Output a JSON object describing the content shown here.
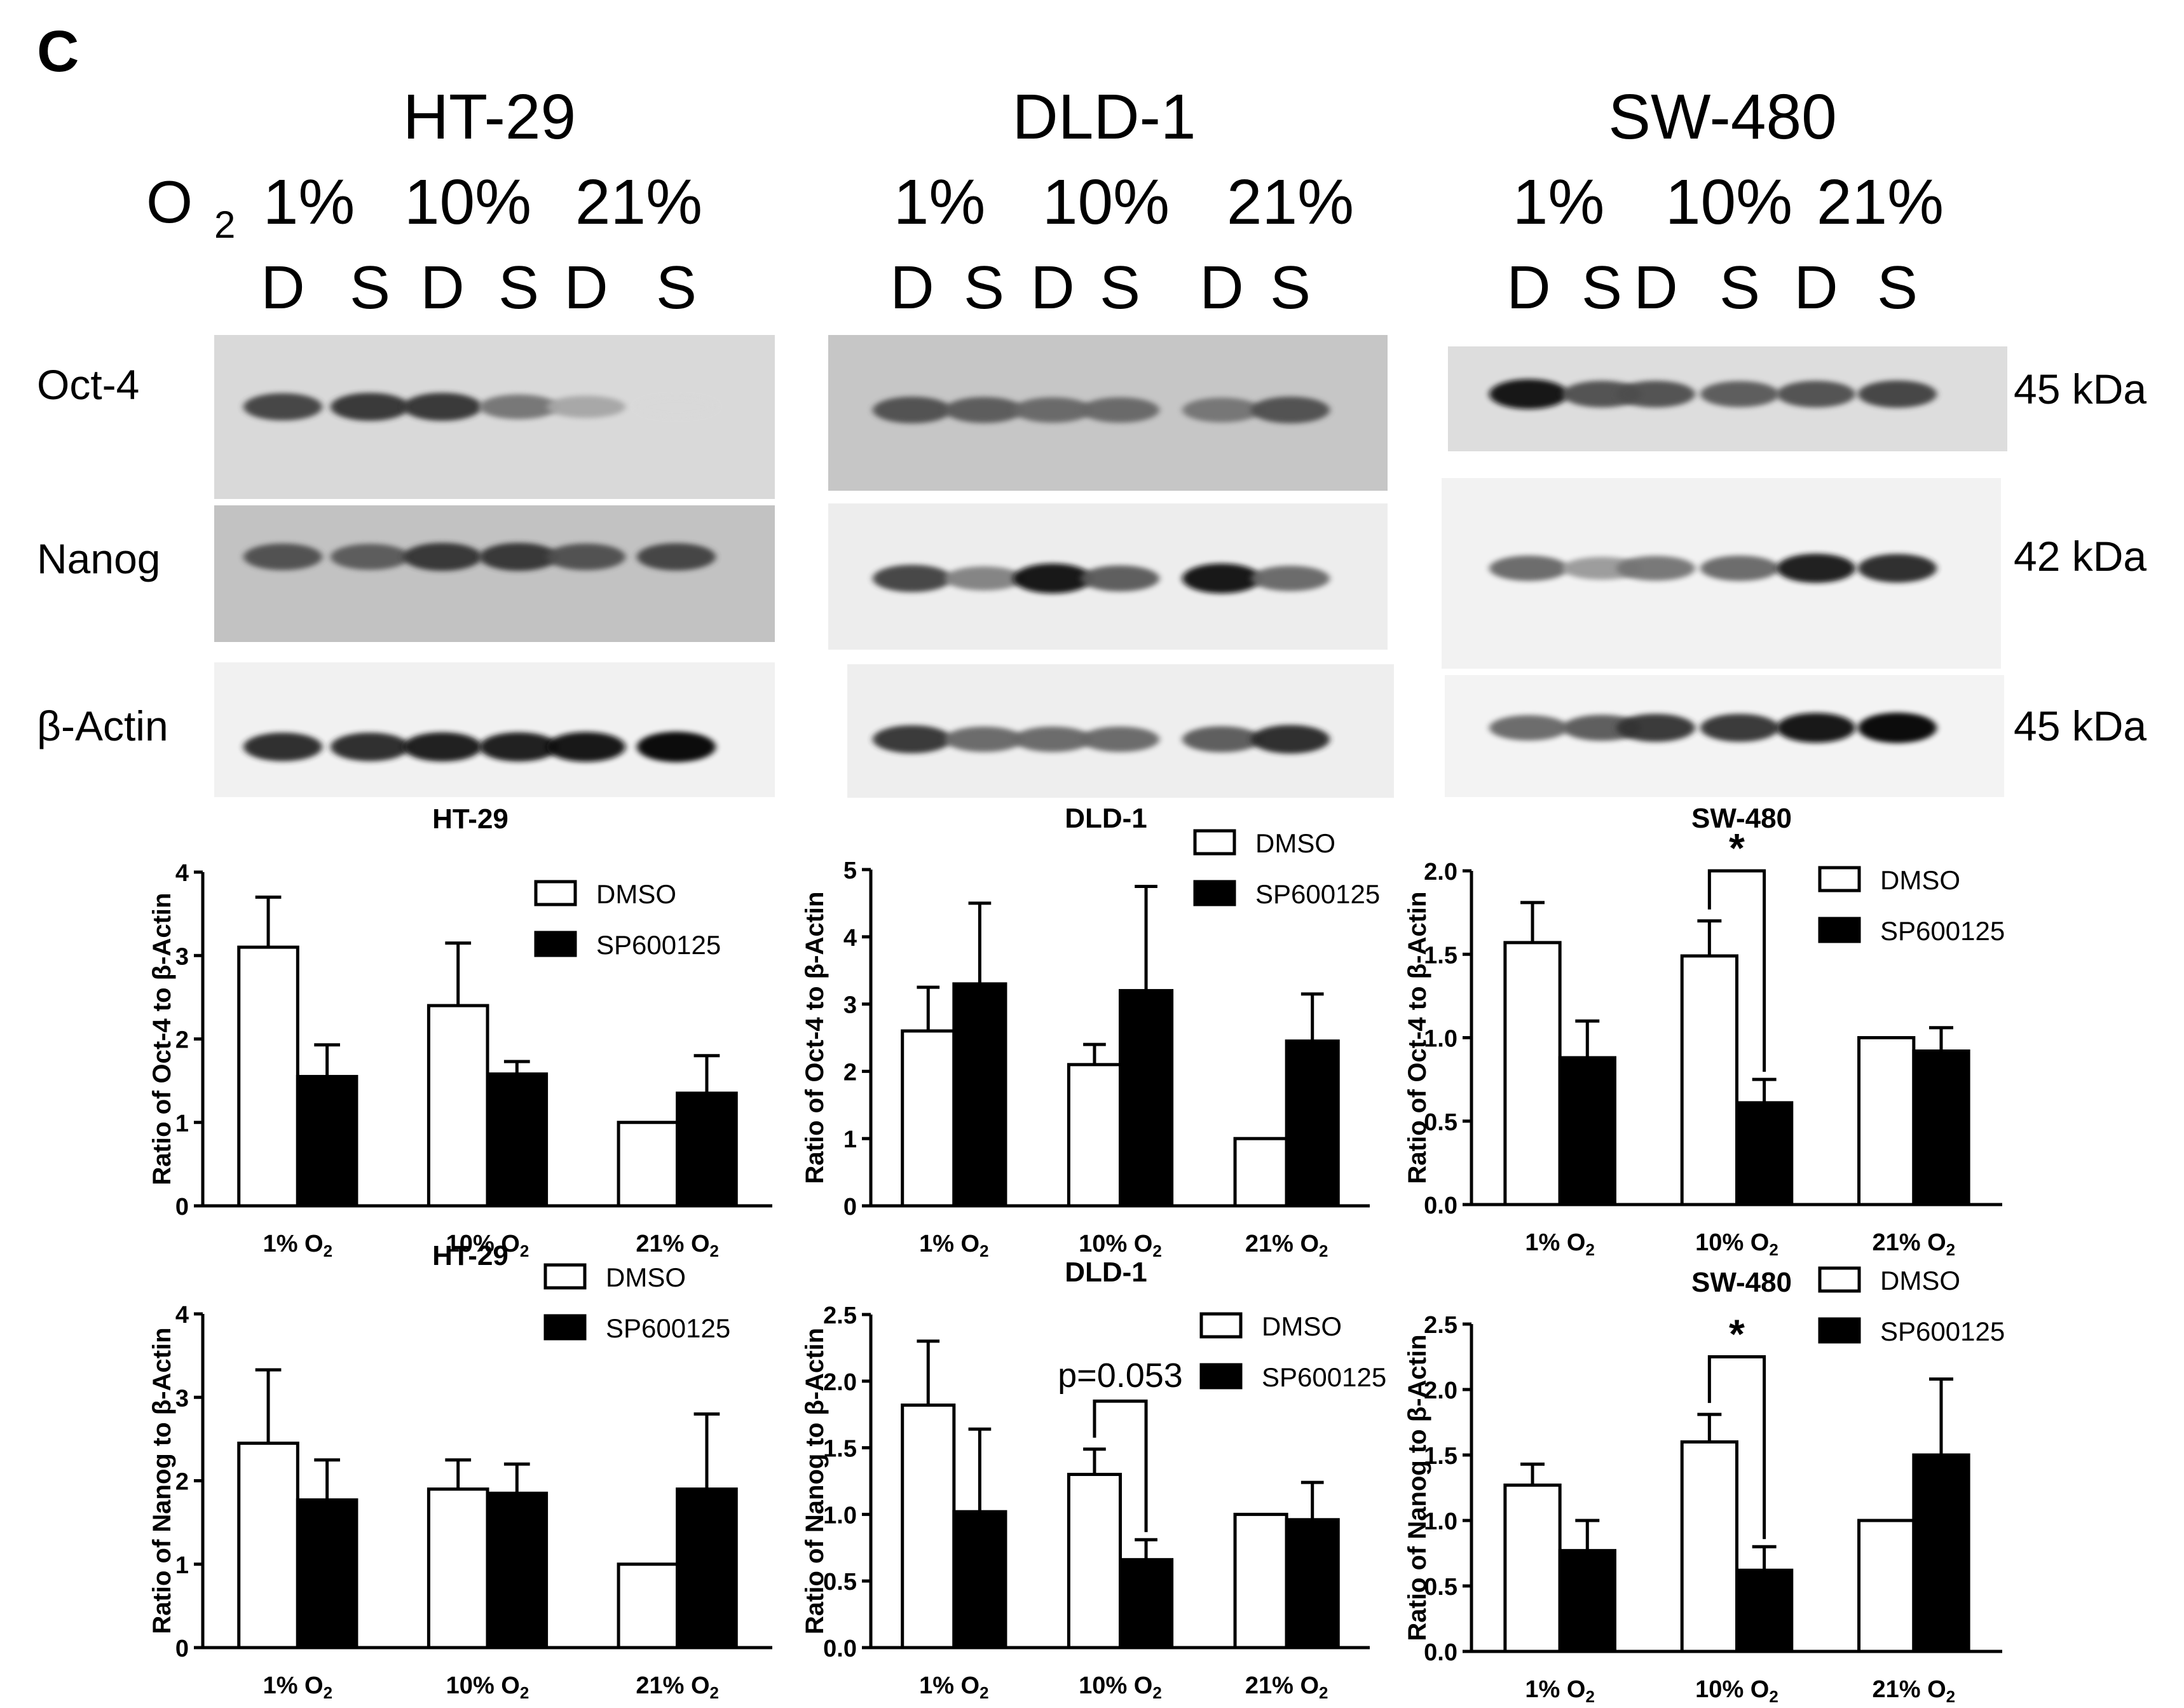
{
  "panel_label": "C",
  "western_blot": {
    "oxygen_label": "O",
    "oxygen_subscript": "2",
    "cell_lines": [
      {
        "name": "HT-29",
        "oxygen": [
          "1%",
          "10%",
          "21%"
        ],
        "lanes": [
          "D",
          "S",
          "D",
          "S",
          "D",
          "S"
        ],
        "oct4": [
          0.75,
          0.8,
          0.8,
          0.55,
          0.35,
          0.15
        ],
        "nanog": [
          0.7,
          0.65,
          0.8,
          0.8,
          0.7,
          0.75
        ],
        "actin": [
          0.85,
          0.85,
          0.9,
          0.9,
          0.95,
          1.0
        ]
      },
      {
        "name": "DLD-1",
        "oxygen": [
          "1%",
          "10%",
          "21%"
        ],
        "lanes": [
          "D",
          "S",
          "D",
          "S",
          "D",
          "S"
        ],
        "oct4": [
          0.7,
          0.65,
          0.6,
          0.6,
          0.55,
          0.7
        ],
        "nanog": [
          0.75,
          0.5,
          0.95,
          0.65,
          0.95,
          0.6
        ],
        "actin": [
          0.8,
          0.6,
          0.6,
          0.6,
          0.65,
          0.85
        ]
      },
      {
        "name": "SW-480",
        "oxygen": [
          "1%",
          "10%",
          "21%"
        ],
        "lanes": [
          "D",
          "S",
          "D",
          "S",
          "D",
          "S"
        ],
        "oct4": [
          0.95,
          0.7,
          0.7,
          0.65,
          0.7,
          0.75
        ],
        "nanog": [
          0.6,
          0.4,
          0.55,
          0.6,
          0.9,
          0.85
        ],
        "actin": [
          0.6,
          0.65,
          0.8,
          0.8,
          0.95,
          1.0
        ]
      }
    ],
    "row_labels": [
      "Oct-4",
      "Nanog",
      "β-Actin"
    ],
    "kda_labels": [
      "45 kDa",
      "42 kDa",
      "45 kDa"
    ]
  },
  "chart_data": [
    {
      "type": "bar",
      "title": "HT-29",
      "ylabel": "Ratio of Oct-4 to β-Actin",
      "categories": [
        "1% O",
        "10% O",
        "21% O"
      ],
      "subscript": "2",
      "ylim": [
        0,
        4
      ],
      "yticks": [
        "0",
        "1",
        "2",
        "3",
        "4"
      ],
      "series": [
        {
          "name": "DMSO",
          "values": [
            3.1,
            2.4,
            1.0
          ],
          "errors": [
            0.6,
            0.75,
            0.0
          ],
          "fill": "#ffffff"
        },
        {
          "name": "SP600125",
          "values": [
            1.55,
            1.58,
            1.35
          ],
          "errors": [
            0.38,
            0.15,
            0.45
          ],
          "fill": "#000000"
        }
      ],
      "annotations": []
    },
    {
      "type": "bar",
      "title": "DLD-1",
      "ylabel": "Ratio of Oct-4 to β-Actin",
      "categories": [
        "1% O",
        "10% O",
        "21% O"
      ],
      "subscript": "2",
      "ylim": [
        0,
        5
      ],
      "yticks": [
        "0",
        "1",
        "2",
        "3",
        "4",
        "5"
      ],
      "series": [
        {
          "name": "DMSO",
          "values": [
            2.6,
            2.1,
            1.0
          ],
          "errors": [
            0.65,
            0.3,
            0.0
          ],
          "fill": "#ffffff"
        },
        {
          "name": "SP600125",
          "values": [
            3.3,
            3.2,
            2.45
          ],
          "errors": [
            1.2,
            1.55,
            0.7
          ],
          "fill": "#000000"
        }
      ],
      "annotations": []
    },
    {
      "type": "bar",
      "title": "SW-480",
      "ylabel": "Ratio of Oct-4 to β-Actin",
      "categories": [
        "1% O",
        "10% O",
        "21% O"
      ],
      "subscript": "2",
      "ylim": [
        0,
        2
      ],
      "yticks": [
        "0.0",
        "0.5",
        "1.0",
        "1.5",
        "2.0"
      ],
      "series": [
        {
          "name": "DMSO",
          "values": [
            1.57,
            1.49,
            1.0
          ],
          "errors": [
            0.24,
            0.21,
            0.0
          ],
          "fill": "#ffffff"
        },
        {
          "name": "SP600125",
          "values": [
            0.88,
            0.61,
            0.92
          ],
          "errors": [
            0.22,
            0.14,
            0.14
          ],
          "fill": "#000000"
        }
      ],
      "annotations": [
        {
          "text": "*",
          "group": 1,
          "level": 2.0
        }
      ]
    },
    {
      "type": "bar",
      "title": "HT-29",
      "ylabel": "Ratio of Nanog to β-Actin",
      "categories": [
        "1% O",
        "10% O",
        "21% O"
      ],
      "subscript": "2",
      "ylim": [
        0,
        4
      ],
      "yticks": [
        "0",
        "1",
        "2",
        "3",
        "4"
      ],
      "series": [
        {
          "name": "DMSO",
          "values": [
            2.45,
            1.9,
            1.0
          ],
          "errors": [
            0.88,
            0.35,
            0.0
          ],
          "fill": "#ffffff"
        },
        {
          "name": "SP600125",
          "values": [
            1.77,
            1.85,
            1.9
          ],
          "errors": [
            0.48,
            0.35,
            0.9
          ],
          "fill": "#000000"
        }
      ],
      "annotations": []
    },
    {
      "type": "bar",
      "title": "DLD-1",
      "ylabel": "Ratio of Nanog to β-Actin",
      "categories": [
        "1% O",
        "10% O",
        "21% O"
      ],
      "subscript": "2",
      "ylim": [
        0,
        2.5
      ],
      "yticks": [
        "0.0",
        "0.5",
        "1.0",
        "1.5",
        "2.0",
        "2.5"
      ],
      "series": [
        {
          "name": "DMSO",
          "values": [
            1.82,
            1.3,
            1.0
          ],
          "errors": [
            0.48,
            0.19,
            0.0
          ],
          "fill": "#ffffff"
        },
        {
          "name": "SP600125",
          "values": [
            1.02,
            0.66,
            0.96
          ],
          "errors": [
            0.62,
            0.15,
            0.28
          ],
          "fill": "#000000"
        }
      ],
      "annotations": [
        {
          "text": "p=0.053",
          "group": 1,
          "level": 1.85
        }
      ]
    },
    {
      "type": "bar",
      "title": "SW-480",
      "ylabel": "Ratio of Nanog to β-Actin",
      "categories": [
        "1% O",
        "10% O",
        "21% O"
      ],
      "subscript": "2",
      "ylim": [
        0,
        2.5
      ],
      "yticks": [
        "0.0",
        "0.5",
        "1.0",
        "1.5",
        "2.0",
        "2.5"
      ],
      "series": [
        {
          "name": "DMSO",
          "values": [
            1.27,
            1.6,
            1.0
          ],
          "errors": [
            0.16,
            0.21,
            0.0
          ],
          "fill": "#ffffff"
        },
        {
          "name": "SP600125",
          "values": [
            0.77,
            0.62,
            1.5
          ],
          "errors": [
            0.23,
            0.18,
            0.58
          ],
          "fill": "#000000"
        }
      ],
      "annotations": [
        {
          "text": "*",
          "group": 1,
          "level": 2.25
        }
      ]
    }
  ]
}
